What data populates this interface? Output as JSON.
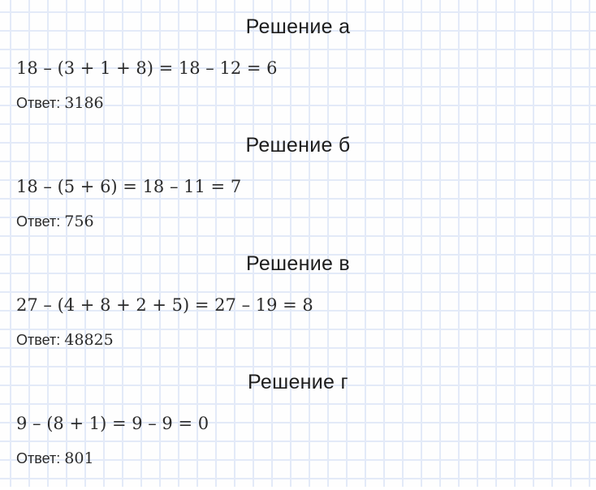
{
  "page": {
    "background_color": "#fefefe",
    "grid_line_color": "#e3eaf8",
    "text_color": "#222222"
  },
  "sections": [
    {
      "heading": "Решение а",
      "equation": "18 – (3 + 1 + 8) = 18 – 12 = 6",
      "answer_label": "Ответ:",
      "answer_value": "3186"
    },
    {
      "heading": "Решение б",
      "equation": "18 – (5 + 6) = 18 – 11 = 7",
      "answer_label": "Ответ:",
      "answer_value": "756"
    },
    {
      "heading": "Решение в",
      "equation": "27 – (4 + 8 + 2 + 5) = 27 – 19 = 8",
      "answer_label": "Ответ:",
      "answer_value": "48825"
    },
    {
      "heading": "Решение г",
      "equation": "9 – (8 + 1) = 9 – 9 = 0",
      "answer_label": "Ответ:",
      "answer_value": "801"
    }
  ]
}
